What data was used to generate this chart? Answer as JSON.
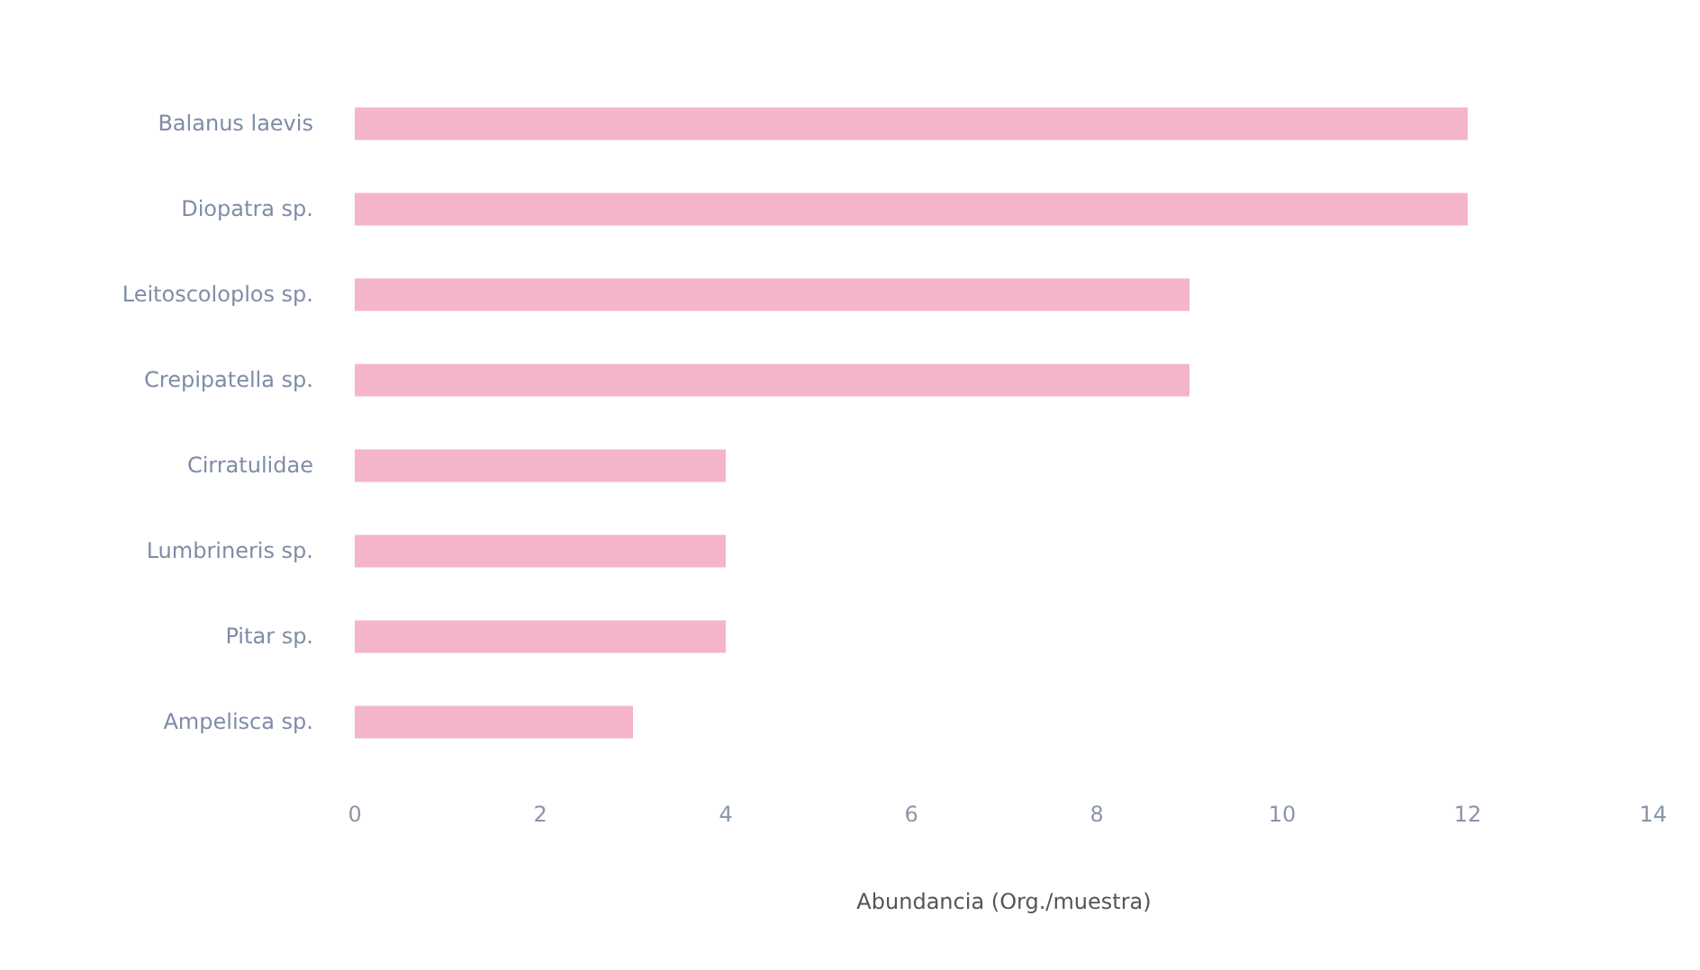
{
  "chart_data": {
    "type": "bar",
    "orientation": "horizontal",
    "categories": [
      "Balanus laevis",
      "Diopatra sp.",
      "Leitoscoloplos sp.",
      "Crepipatella sp.",
      "Cirratulidae",
      "Lumbrineris sp.",
      "Pitar sp.",
      "Ampelisca sp."
    ],
    "values": [
      12,
      12,
      9,
      9,
      4,
      4,
      4,
      3
    ],
    "color": "#f5b5c8",
    "xlabel": "Abundancia (Org./muestra)",
    "xlim": [
      0,
      14
    ],
    "xticks": [
      0,
      2,
      4,
      6,
      8,
      10,
      12,
      14
    ],
    "grid": false
  }
}
